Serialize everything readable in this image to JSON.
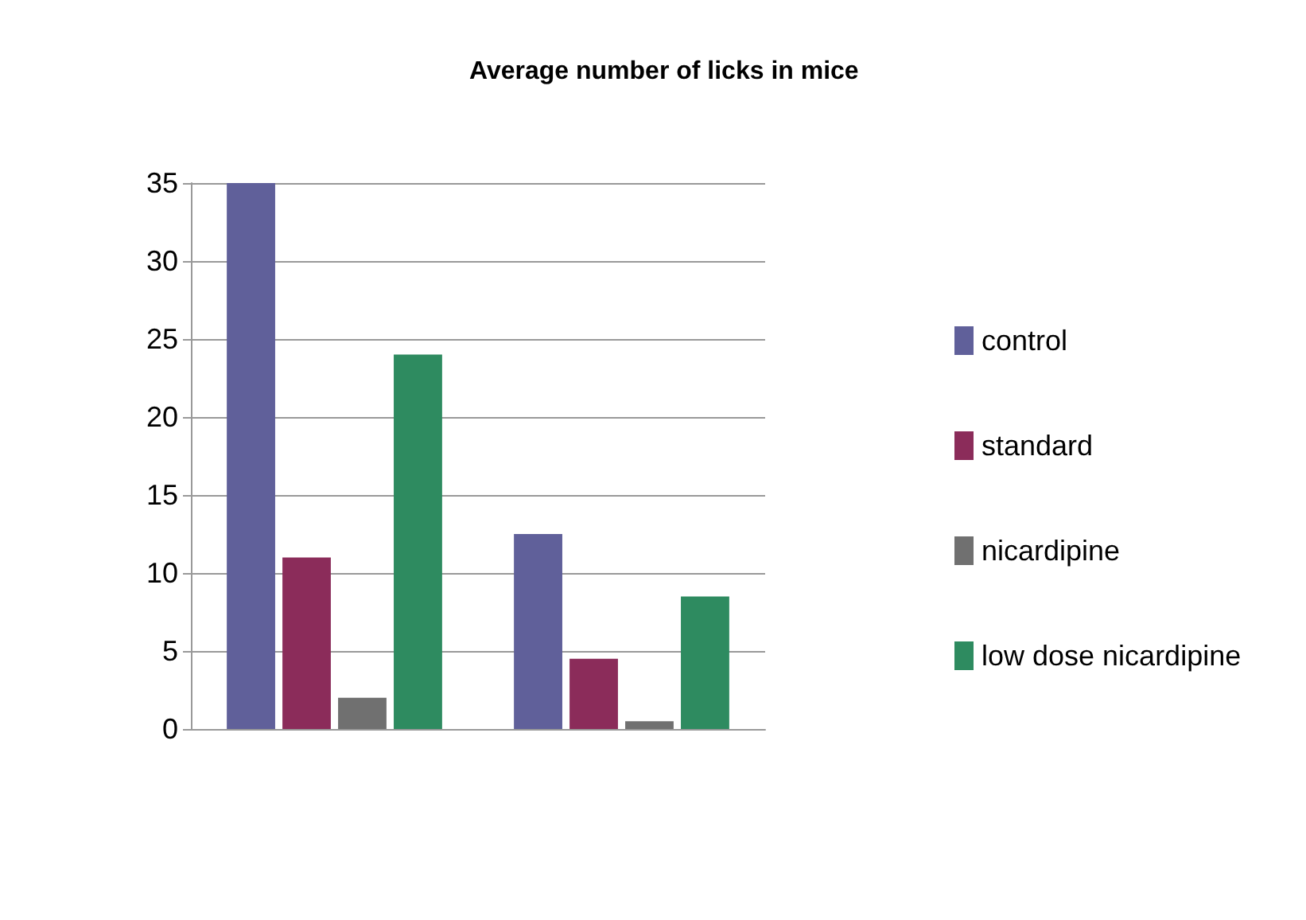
{
  "chart_data": {
    "type": "bar",
    "title": "Average number of licks in mice",
    "categories": [
      null,
      null
    ],
    "series": [
      {
        "name": "control",
        "color": "#60609a",
        "values": [
          35,
          12.5
        ]
      },
      {
        "name": "standard",
        "color": "#8b2c5a",
        "values": [
          11,
          4.5
        ]
      },
      {
        "name": "nicardipine",
        "color": "#707070",
        "values": [
          2,
          0.5
        ]
      },
      {
        "name": "low dose nicardipine",
        "color": "#2e8b60",
        "values": [
          24,
          8.5
        ]
      }
    ],
    "ylim": [
      0,
      35
    ],
    "yticks": [
      0,
      5,
      10,
      15,
      20,
      25,
      30,
      35
    ],
    "grid": "y",
    "legend": "right"
  }
}
